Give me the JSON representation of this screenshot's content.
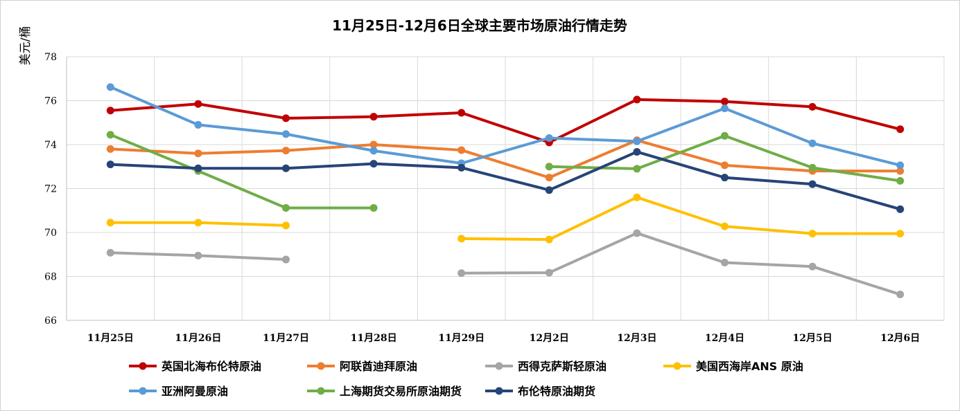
{
  "chart_data": {
    "type": "line",
    "title": "11月25日-12月6日全球主要市场原油行情走势",
    "ylabel": "美元/桶",
    "xlabel": "",
    "ylim": [
      66,
      78
    ],
    "yticks": [
      66,
      68,
      70,
      72,
      74,
      76,
      78
    ],
    "grid": true,
    "legend": "bottom",
    "categories": [
      "11月25日",
      "11月26日",
      "11月27日",
      "11月28日",
      "11月29日",
      "12月2日",
      "12月3日",
      "12月4日",
      "12月5日",
      "12月6日"
    ],
    "series": [
      {
        "name": "英国北海布伦特原油",
        "color": "#C00000",
        "values": [
          75.55,
          75.85,
          75.2,
          75.27,
          75.45,
          74.1,
          76.05,
          75.96,
          75.72,
          74.7
        ]
      },
      {
        "name": "阿联酋迪拜原油",
        "color": "#ED7D31",
        "values": [
          73.8,
          73.6,
          73.73,
          74.0,
          73.75,
          72.5,
          74.2,
          73.06,
          72.8,
          72.8
        ]
      },
      {
        "name": "西得克萨斯轻原油",
        "color": "#A5A5A5",
        "values": [
          69.08,
          68.95,
          68.77,
          null,
          68.15,
          68.17,
          69.97,
          68.63,
          68.45,
          67.18
        ]
      },
      {
        "name": "美国西海岸ANS 原油",
        "color": "#FFC000",
        "values": [
          70.45,
          70.45,
          70.32,
          null,
          69.72,
          69.68,
          71.6,
          70.28,
          69.95,
          69.95
        ]
      },
      {
        "name": "亚洲阿曼原油",
        "color": "#5B9BD5",
        "values": [
          76.62,
          74.9,
          74.48,
          73.72,
          73.15,
          74.3,
          74.15,
          75.65,
          74.06,
          73.06
        ]
      },
      {
        "name": "上海期货交易所原油期货",
        "color": "#70AD47",
        "values": [
          74.45,
          72.8,
          71.12,
          71.12,
          null,
          73.0,
          72.9,
          74.4,
          72.95,
          72.35
        ]
      },
      {
        "name": "布伦特原油期货",
        "color": "#264478",
        "values": [
          73.1,
          72.92,
          72.92,
          73.13,
          72.95,
          71.93,
          73.67,
          72.5,
          72.2,
          71.06
        ]
      }
    ]
  }
}
